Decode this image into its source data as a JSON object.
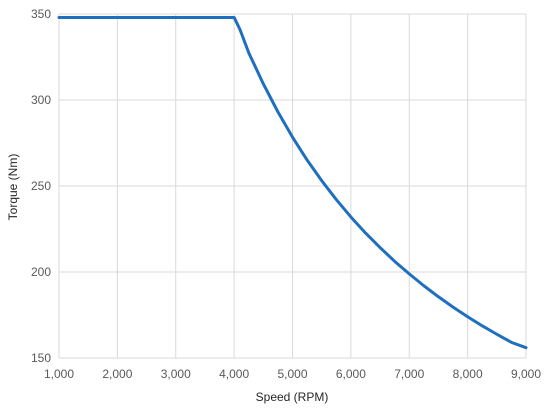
{
  "chart_data": {
    "type": "line",
    "title": "",
    "xlabel": "Speed (RPM)",
    "ylabel": "Torque (Nm)",
    "xlim": [
      1000,
      9000
    ],
    "ylim": [
      150,
      350
    ],
    "x_ticks": [
      1000,
      2000,
      3000,
      4000,
      5000,
      6000,
      7000,
      8000,
      9000
    ],
    "x_tick_labels": [
      "1,000",
      "2,000",
      "3,000",
      "4,000",
      "5,000",
      "6,000",
      "7,000",
      "8,000",
      "9,000"
    ],
    "y_ticks": [
      150,
      200,
      250,
      300,
      350
    ],
    "y_tick_labels": [
      "150",
      "200",
      "250",
      "300",
      "350"
    ],
    "grid": "vertical and horizontal",
    "legend": "none",
    "series_color": "#1f6fbf",
    "gridline_color": "#d9d9d9",
    "series": [
      {
        "x": [
          1000,
          2000,
          3000,
          3900,
          4000,
          4100,
          4250,
          4500,
          4750,
          5000,
          5250,
          5500,
          5750,
          6000,
          6250,
          6500,
          6750,
          7000,
          7250,
          7500,
          7750,
          8000,
          8250,
          8500,
          8750,
          9000
        ],
        "y": [
          348,
          348,
          348,
          348,
          348,
          341,
          327.5,
          309.4,
          293.1,
          278.4,
          265.1,
          253.1,
          242.1,
          232.0,
          222.7,
          214.2,
          206.2,
          198.9,
          192.0,
          185.6,
          179.6,
          174.0,
          168.7,
          163.8,
          159.1,
          156.0
        ]
      }
    ]
  }
}
